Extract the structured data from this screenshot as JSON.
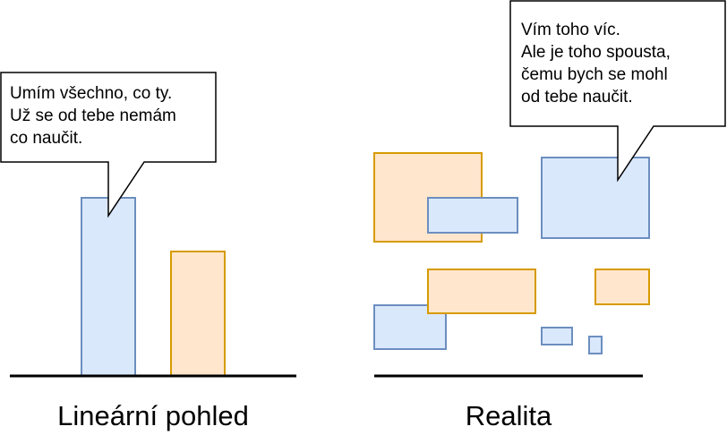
{
  "left_panel": {
    "caption": "Lineární pohled",
    "bubble_lines": [
      "Umím všechno, co ty.",
      "Už se od tebe nemám",
      "co naučit."
    ]
  },
  "right_panel": {
    "caption": "Realita",
    "bubble_lines": [
      "Vím toho víc.",
      "Ale je toho spousta,",
      "čemu bych se mohl",
      "od tebe naučit."
    ]
  },
  "colors": {
    "blue_fill": "#dae8fc",
    "blue_stroke": "#6c8ebf",
    "orange_fill": "#ffe6cc",
    "orange_stroke": "#d79b00"
  }
}
